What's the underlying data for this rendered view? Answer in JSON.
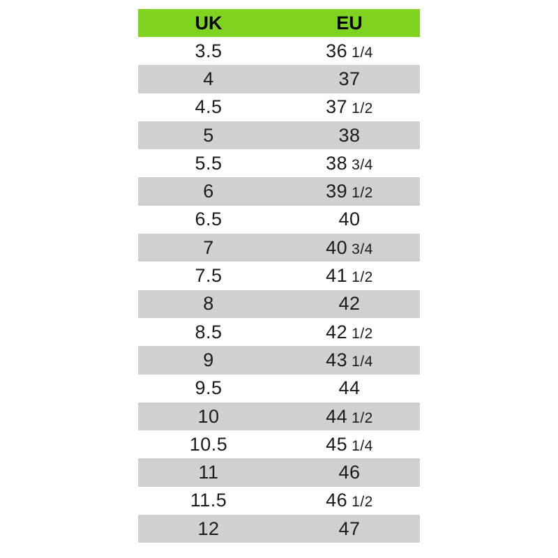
{
  "table": {
    "headers": {
      "uk": "UK",
      "eu": "EU"
    },
    "rows": [
      {
        "uk": "3.5",
        "eu_whole": "36",
        "eu_frac": "1/4"
      },
      {
        "uk": "4",
        "eu_whole": "37",
        "eu_frac": ""
      },
      {
        "uk": "4.5",
        "eu_whole": "37",
        "eu_frac": "1/2"
      },
      {
        "uk": "5",
        "eu_whole": "38",
        "eu_frac": ""
      },
      {
        "uk": "5.5",
        "eu_whole": "38",
        "eu_frac": "3/4"
      },
      {
        "uk": "6",
        "eu_whole": "39",
        "eu_frac": "1/2"
      },
      {
        "uk": "6.5",
        "eu_whole": "40",
        "eu_frac": ""
      },
      {
        "uk": "7",
        "eu_whole": "40",
        "eu_frac": "3/4"
      },
      {
        "uk": "7.5",
        "eu_whole": "41",
        "eu_frac": "1/2"
      },
      {
        "uk": "8",
        "eu_whole": "42",
        "eu_frac": ""
      },
      {
        "uk": "8.5",
        "eu_whole": "42",
        "eu_frac": "1/2"
      },
      {
        "uk": "9",
        "eu_whole": "43",
        "eu_frac": "1/4"
      },
      {
        "uk": "9.5",
        "eu_whole": "44",
        "eu_frac": ""
      },
      {
        "uk": "10",
        "eu_whole": "44",
        "eu_frac": "1/2"
      },
      {
        "uk": "10.5",
        "eu_whole": "45",
        "eu_frac": "1/4"
      },
      {
        "uk": "11",
        "eu_whole": "46",
        "eu_frac": ""
      },
      {
        "uk": "11.5",
        "eu_whole": "46",
        "eu_frac": "1/2"
      },
      {
        "uk": "12",
        "eu_whole": "47",
        "eu_frac": ""
      }
    ]
  },
  "colors": {
    "header_bg": "#7ed321",
    "stripe_bg": "#d0d0d0",
    "row_bg": "#ffffff"
  }
}
